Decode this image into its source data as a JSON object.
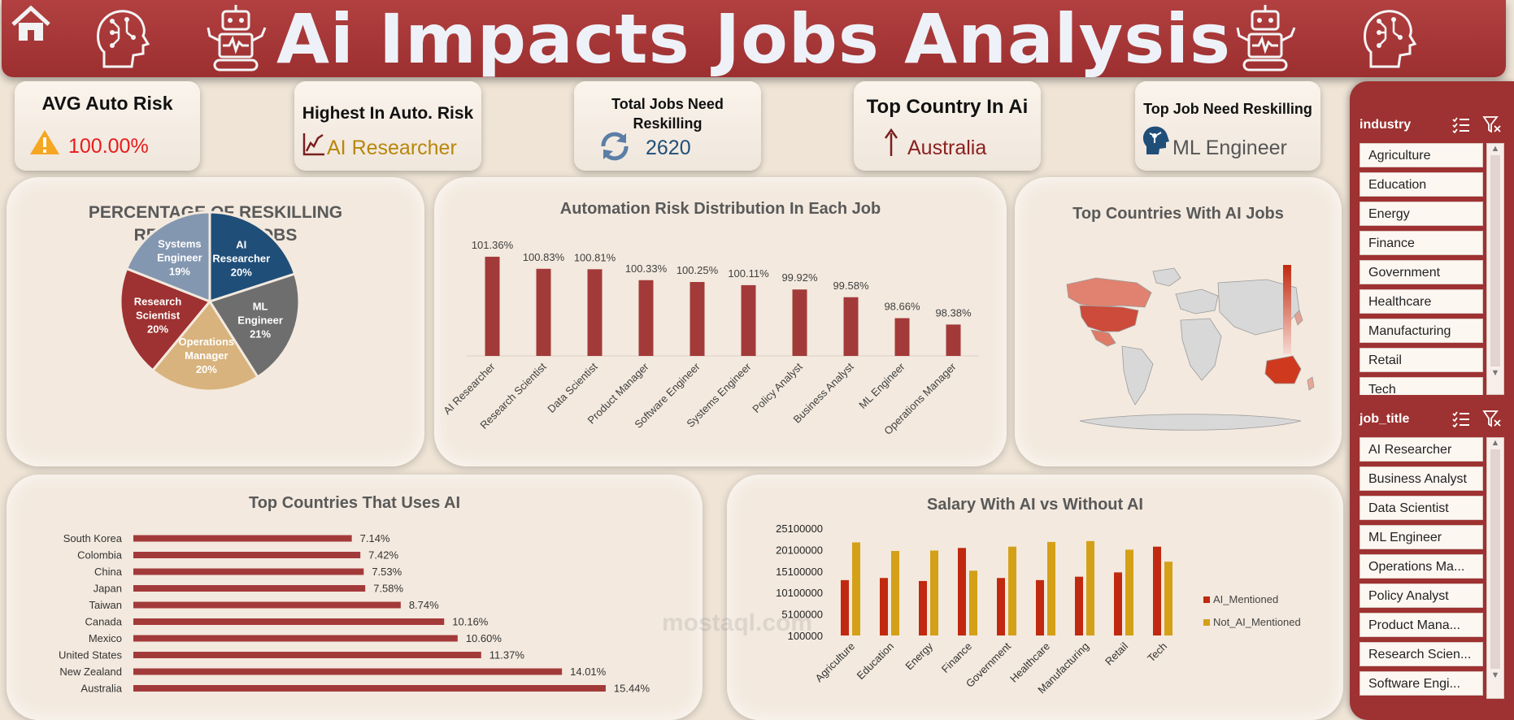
{
  "header": {
    "title": "Ai Impacts Jobs Analysis"
  },
  "kpis": {
    "avg_risk": {
      "title": "AVG Auto Risk",
      "value": "100.00%"
    },
    "highest_risk": {
      "title": "Highest In Auto. Risk",
      "value": "AI Researcher"
    },
    "reskilling": {
      "title": "Total Jobs Need Reskilling",
      "value": "2620"
    },
    "top_country": {
      "title": "Top Country In Ai",
      "value": "Australia"
    },
    "top_job": {
      "title": "Top Job Need Reskilling",
      "value": "ML Engineer"
    }
  },
  "colors": {
    "accent": "#9e3131",
    "dark_red": "#9c3a3a",
    "gold": "#d4a017",
    "orange_red": "#c0290f",
    "blue": "#1f4e79"
  },
  "icons": [
    "home-icon",
    "ai-head-icon",
    "robot-icon",
    "warning-icon",
    "line-chart-icon",
    "refresh-icon",
    "up-arrow-icon",
    "ai-profile-icon",
    "multi-select-icon",
    "clear-filter-icon"
  ],
  "slicers": {
    "industry": {
      "title": "industry",
      "items": [
        "Agriculture",
        "Education",
        "Energy",
        "Finance",
        "Government",
        "Healthcare",
        "Manufacturing",
        "Retail",
        "Tech"
      ]
    },
    "job_title": {
      "title": "job_title",
      "items": [
        "AI Researcher",
        "Business Analyst",
        "Data Scientist",
        "ML Engineer",
        "Operations Ma...",
        "Policy Analyst",
        "Product Mana...",
        "Research Scien...",
        "Software Engi..."
      ]
    }
  },
  "watermark": "mostaql.com",
  "chart_data": [
    {
      "type": "pie",
      "title": "PERCENTAGE OF RESKILLING REQUIRED IN JOBS",
      "slices": [
        {
          "label": "AI Researcher",
          "value": 20,
          "color": "#1f4e79"
        },
        {
          "label": "ML Engineer",
          "value": 21,
          "color": "#6e6e6e"
        },
        {
          "label": "Operations Manager",
          "value": 20,
          "color": "#d8b37d"
        },
        {
          "label": "Research Scientist",
          "value": 20,
          "color": "#9e3131"
        },
        {
          "label": "Systems Engineer",
          "value": 19,
          "color": "#8497b0"
        }
      ]
    },
    {
      "type": "bar",
      "title": "Automation Risk Distribution In Each Job",
      "categories": [
        "AI Researcher",
        "Research Scientist",
        "Data Scientist",
        "Product Manager",
        "Software Engineer",
        "Systems Engineer",
        "Policy Analyst",
        "Business Analyst",
        "ML Engineer",
        "Operations Manager"
      ],
      "values": [
        101.36,
        100.83,
        100.81,
        100.33,
        100.25,
        100.11,
        99.92,
        99.58,
        98.66,
        98.38
      ],
      "labels": [
        "101.36%",
        "100.83%",
        "100.81%",
        "100.33%",
        "100.25%",
        "100.11%",
        "99.92%",
        "99.58%",
        "98.66%",
        "98.38%"
      ],
      "ylim": [
        97,
        102
      ]
    },
    {
      "type": "map",
      "title": "Top Countries With AI Jobs",
      "highlighted": [
        "Australia",
        "United States",
        "Canada",
        "New Zealand",
        "Mexico"
      ]
    },
    {
      "type": "bar",
      "orientation": "horizontal",
      "title": "Top Countries That Uses AI",
      "categories": [
        "South Korea",
        "Colombia",
        "China",
        "Japan",
        "Taiwan",
        "Canada",
        "Mexico",
        "United States",
        "New Zealand",
        "Australia"
      ],
      "values": [
        7.14,
        7.42,
        7.53,
        7.58,
        8.74,
        10.16,
        10.6,
        11.37,
        14.01,
        15.44
      ],
      "labels": [
        "7.14%",
        "7.42%",
        "7.53%",
        "7.58%",
        "8.74%",
        "10.16%",
        "10.60%",
        "11.37%",
        "14.01%",
        "15.44%"
      ],
      "xlim": [
        0,
        16
      ]
    },
    {
      "type": "bar",
      "title": "Salary With AI vs Without AI",
      "categories": [
        "Agriculture",
        "Education",
        "Energy",
        "Finance",
        "Government",
        "Healthcare",
        "Manufacturing",
        "Retail",
        "Tech"
      ],
      "series": [
        {
          "name": "AI_Mentioned",
          "color": "#c0290f",
          "values": [
            13000000,
            13500000,
            12800000,
            20500000,
            13500000,
            13000000,
            13800000,
            14800000,
            20800000
          ]
        },
        {
          "name": "Not_AI_Mentioned",
          "color": "#d4a017",
          "values": [
            21800000,
            19800000,
            19900000,
            15200000,
            20800000,
            21900000,
            22100000,
            20100000,
            17300000
          ]
        }
      ],
      "ytick_labels": [
        "25100000",
        "20100000",
        "15100000",
        "10100000",
        "5100000",
        "100000"
      ],
      "ylim": [
        100000,
        25100000
      ]
    }
  ]
}
